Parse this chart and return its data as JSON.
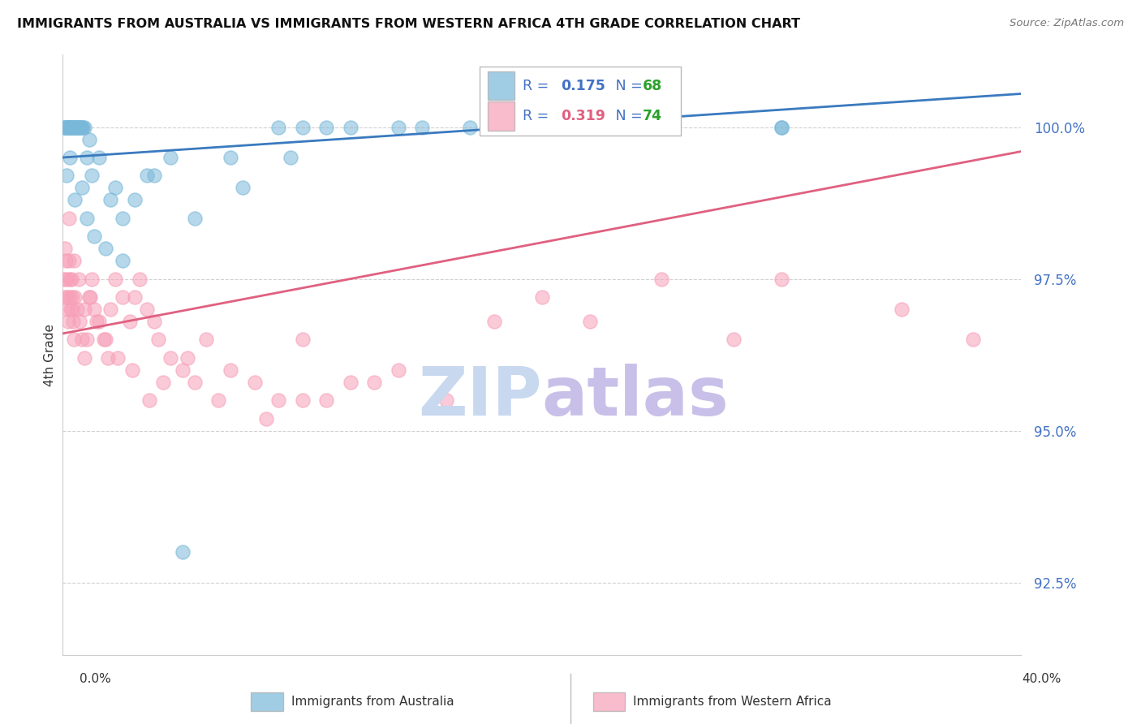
{
  "title": "IMMIGRANTS FROM AUSTRALIA VS IMMIGRANTS FROM WESTERN AFRICA 4TH GRADE CORRELATION CHART",
  "source": "Source: ZipAtlas.com",
  "ylabel": "4th Grade",
  "y_ticks": [
    92.5,
    95.0,
    97.5,
    100.0
  ],
  "y_tick_labels": [
    "92.5%",
    "95.0%",
    "97.5%",
    "100.0%"
  ],
  "x_min": 0.0,
  "x_max": 40.0,
  "y_min": 91.3,
  "y_max": 101.2,
  "blue_R": "0.175",
  "blue_N": "68",
  "pink_R": "0.319",
  "pink_N": "74",
  "blue_color": "#7ab8d9",
  "pink_color": "#f7a0b8",
  "blue_line_color": "#3a7abf",
  "pink_line_color": "#e06080",
  "blue_line_x0": 0.0,
  "blue_line_x1": 40.0,
  "blue_line_y0": 99.5,
  "blue_line_y1": 100.55,
  "pink_line_x0": 0.0,
  "pink_line_x1": 40.0,
  "pink_line_y0": 96.6,
  "pink_line_y1": 99.6,
  "legend_R_color": "#4472c4",
  "legend_N_color": "#2ca02c",
  "legend_pink_R_color": "#e06080",
  "watermark_zip_color": "#c8d8ef",
  "watermark_atlas_color": "#c8c0e8",
  "blue_scatter_x": [
    0.05,
    0.1,
    0.12,
    0.15,
    0.18,
    0.2,
    0.22,
    0.25,
    0.28,
    0.3,
    0.32,
    0.35,
    0.38,
    0.4,
    0.42,
    0.45,
    0.48,
    0.5,
    0.52,
    0.55,
    0.58,
    0.6,
    0.62,
    0.65,
    0.68,
    0.7,
    0.75,
    0.78,
    0.8,
    0.85,
    0.9,
    1.0,
    1.1,
    1.2,
    1.5,
    2.0,
    2.2,
    2.5,
    3.0,
    3.5,
    4.5,
    5.0,
    7.0,
    9.0,
    10.0,
    12.0,
    15.0,
    18.0,
    25.0,
    30.0,
    0.15,
    0.3,
    0.5,
    0.8,
    1.0,
    1.3,
    1.8,
    2.5,
    3.8,
    5.5,
    7.5,
    9.5,
    11.0,
    14.0,
    17.0,
    20.0,
    25.0,
    30.0
  ],
  "blue_scatter_y": [
    100.0,
    100.0,
    100.0,
    100.0,
    100.0,
    100.0,
    100.0,
    100.0,
    100.0,
    100.0,
    100.0,
    100.0,
    100.0,
    100.0,
    100.0,
    100.0,
    100.0,
    100.0,
    100.0,
    100.0,
    100.0,
    100.0,
    100.0,
    100.0,
    100.0,
    100.0,
    100.0,
    100.0,
    100.0,
    100.0,
    100.0,
    99.5,
    99.8,
    99.2,
    99.5,
    98.8,
    99.0,
    98.5,
    98.8,
    99.2,
    99.5,
    93.0,
    99.5,
    100.0,
    100.0,
    100.0,
    100.0,
    100.0,
    100.0,
    100.0,
    99.2,
    99.5,
    98.8,
    99.0,
    98.5,
    98.2,
    98.0,
    97.8,
    99.2,
    98.5,
    99.0,
    99.5,
    100.0,
    100.0,
    100.0,
    100.0,
    100.0,
    100.0
  ],
  "pink_scatter_x": [
    0.05,
    0.08,
    0.1,
    0.12,
    0.15,
    0.18,
    0.2,
    0.22,
    0.25,
    0.28,
    0.3,
    0.32,
    0.35,
    0.38,
    0.4,
    0.42,
    0.45,
    0.5,
    0.6,
    0.7,
    0.8,
    0.9,
    1.0,
    1.1,
    1.2,
    1.3,
    1.5,
    1.7,
    1.9,
    2.0,
    2.2,
    2.5,
    2.8,
    3.0,
    3.2,
    3.5,
    3.8,
    4.0,
    4.5,
    5.0,
    5.5,
    6.0,
    7.0,
    8.0,
    9.0,
    10.0,
    11.0,
    12.0,
    14.0,
    16.0,
    18.0,
    20.0,
    22.0,
    25.0,
    28.0,
    30.0,
    35.0,
    38.0,
    0.25,
    0.45,
    0.65,
    0.9,
    1.15,
    1.4,
    1.8,
    2.3,
    2.9,
    3.6,
    4.2,
    5.2,
    6.5,
    8.5,
    10.0,
    13.0
  ],
  "pink_scatter_y": [
    97.5,
    97.2,
    98.0,
    97.8,
    97.5,
    97.2,
    97.0,
    96.8,
    97.8,
    97.5,
    97.2,
    97.0,
    97.5,
    97.2,
    97.0,
    96.8,
    96.5,
    97.2,
    97.0,
    96.8,
    96.5,
    96.2,
    96.5,
    97.2,
    97.5,
    97.0,
    96.8,
    96.5,
    96.2,
    97.0,
    97.5,
    97.2,
    96.8,
    97.2,
    97.5,
    97.0,
    96.8,
    96.5,
    96.2,
    96.0,
    95.8,
    96.5,
    96.0,
    95.8,
    95.5,
    96.5,
    95.5,
    95.8,
    96.0,
    95.5,
    96.8,
    97.2,
    96.8,
    97.5,
    96.5,
    97.5,
    97.0,
    96.5,
    98.5,
    97.8,
    97.5,
    97.0,
    97.2,
    96.8,
    96.5,
    96.2,
    96.0,
    95.5,
    95.8,
    96.2,
    95.5,
    95.2,
    95.5,
    95.8
  ]
}
